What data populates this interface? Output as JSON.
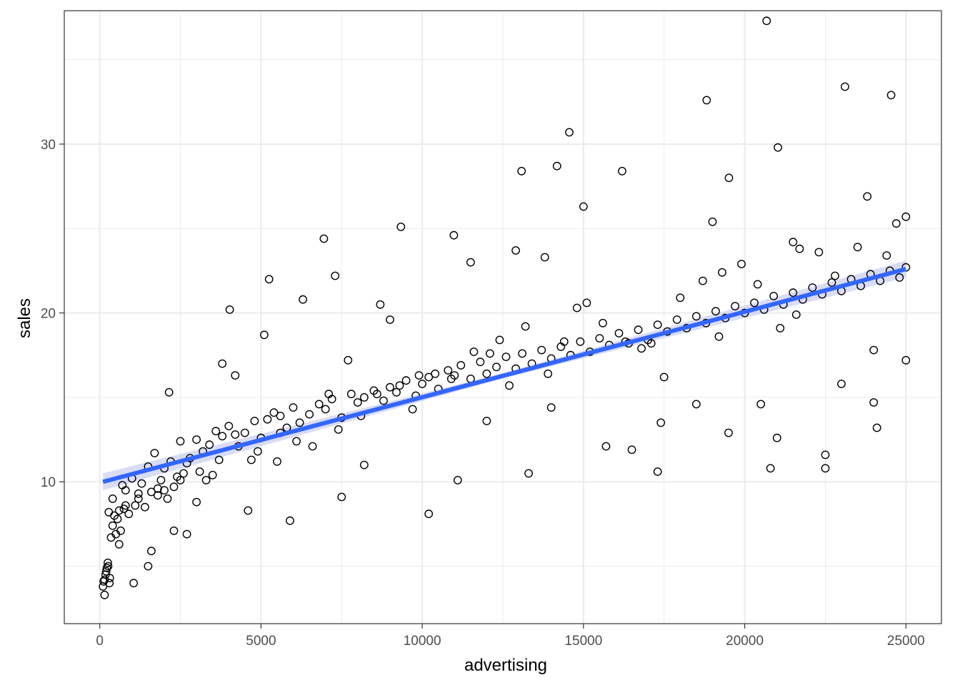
{
  "chart_data": {
    "type": "scatter",
    "title": "",
    "xlabel": "advertising",
    "ylabel": "sales",
    "xlim": [
      -1100,
      26100
    ],
    "ylim": [
      1.6,
      37.9
    ],
    "x_ticks": [
      0,
      5000,
      10000,
      15000,
      20000,
      25000
    ],
    "x_tick_labels": [
      "0",
      "5000",
      "10000",
      "15000",
      "20000",
      "25000"
    ],
    "y_ticks": [
      10,
      20,
      30
    ],
    "y_tick_labels": [
      "10",
      "20",
      "30"
    ],
    "grid": true,
    "theme": "bw",
    "legend": "none",
    "colors": {
      "points": "#000000",
      "trend": "#3366ff",
      "band": "#c8cdf0",
      "grid": "#ebebeb",
      "border": "#333333"
    },
    "trend_line": {
      "method": "linear",
      "x": [
        100,
        25000
      ],
      "y": [
        10.0,
        22.6
      ],
      "band_halfwidth": 0.35
    },
    "series": [
      {
        "x": [
          100,
          150,
          180,
          220,
          250,
          300,
          150,
          200,
          260,
          310,
          120,
          280,
          350,
          400,
          450,
          500,
          550,
          600,
          650,
          700,
          750,
          800,
          900,
          1000,
          1100,
          1200,
          1300,
          1400,
          1500,
          1600,
          1700,
          1800,
          1900,
          2000,
          2100,
          2200,
          2300,
          2400,
          2500,
          2600,
          2700,
          2800,
          3000,
          3200,
          3400,
          3600,
          3800,
          4000,
          4200,
          4500,
          4800,
          5000,
          5200,
          5400,
          5600,
          5800,
          6000,
          6200,
          6500,
          6800,
          7000,
          7200,
          7500,
          7800,
          8000,
          8200,
          8500,
          8800,
          9000,
          9200,
          9500,
          9800,
          10000,
          10200,
          10500,
          10800,
          11000,
          11200,
          11500,
          11800,
          12000,
          12300,
          12600,
          12900,
          13100,
          13400,
          13700,
          14000,
          14300,
          14600,
          14900,
          15200,
          15500,
          15800,
          16100,
          16400,
          16700,
          17000,
          17300,
          17600,
          17900,
          18200,
          18500,
          18800,
          19100,
          19400,
          19700,
          20000,
          20300,
          20600,
          20900,
          21200,
          21500,
          21800,
          22100,
          22400,
          22700,
          23000,
          23300,
          23600,
          23900,
          24200,
          24500,
          24800,
          25000,
          20680,
          23110,
          18820,
          24540,
          14560,
          21030,
          13080,
          14180,
          19510,
          25000,
          6950,
          9340,
          3800,
          2150,
          4030,
          5250,
          7300,
          10980,
          12900,
          16200,
          17300,
          20800,
          22500,
          24100,
          1050,
          1500,
          600,
          400,
          2300,
          2700,
          4600,
          5900,
          7500,
          10200,
          11100,
          13300,
          15700,
          17400,
          19500,
          21000,
          22500,
          24000,
          1600,
          3000,
          5500,
          8200,
          12000,
          14000,
          16500,
          18500,
          20500,
          23000,
          9000,
          11500,
          13800,
          15000,
          19000,
          21500,
          23800,
          4200,
          6300,
          8700,
          3500,
          5100,
          7700,
          9900,
          12400,
          14800,
          17100,
          19300,
          21700,
          24400,
          2000,
          3300,
          4700,
          6100,
          7400,
          8600,
          9700,
          10900,
          12100,
          13200,
          14400,
          15600,
          16800,
          18000,
          19200,
          20400,
          21600,
          22800,
          24000,
          25000,
          800,
          1200,
          1800,
          2500,
          3100,
          3700,
          4300,
          4900,
          5600,
          6600,
          7100,
          8100,
          9300,
          10400,
          11600,
          12700,
          13900,
          15100,
          16300,
          17500,
          18700,
          19900,
          21100,
          22300,
          23500,
          24700
        ],
        "y": [
          3.8,
          4.2,
          4.5,
          4.9,
          5.2,
          4.0,
          3.3,
          4.7,
          5.0,
          4.3,
          4.1,
          8.2,
          6.7,
          7.4,
          8.0,
          6.9,
          7.8,
          8.3,
          7.1,
          9.8,
          8.4,
          9.5,
          8.1,
          10.2,
          8.6,
          9.3,
          9.9,
          8.5,
          10.9,
          9.4,
          11.7,
          9.6,
          10.1,
          10.8,
          9.0,
          11.2,
          9.7,
          10.3,
          12.4,
          10.5,
          11.1,
          11.4,
          12.5,
          11.8,
          12.2,
          13.0,
          12.7,
          13.3,
          12.8,
          12.9,
          13.6,
          12.6,
          13.7,
          14.1,
          13.9,
          13.2,
          14.4,
          13.5,
          14.0,
          14.6,
          14.3,
          14.9,
          13.8,
          15.2,
          14.7,
          15.0,
          15.4,
          14.8,
          15.6,
          15.3,
          16.0,
          15.1,
          15.8,
          16.2,
          15.5,
          16.6,
          16.3,
          16.9,
          16.1,
          17.1,
          16.4,
          16.8,
          17.4,
          16.7,
          17.6,
          17.0,
          17.8,
          17.3,
          18.0,
          17.5,
          18.3,
          17.7,
          18.5,
          18.1,
          18.8,
          18.2,
          19.0,
          18.4,
          19.3,
          18.9,
          19.6,
          19.1,
          19.8,
          19.4,
          20.1,
          19.7,
          20.4,
          20.0,
          20.6,
          20.2,
          21.0,
          20.5,
          21.2,
          20.8,
          21.5,
          21.1,
          21.8,
          21.3,
          22.0,
          21.6,
          22.3,
          21.9,
          22.5,
          22.1,
          22.7,
          37.3,
          33.4,
          32.6,
          32.9,
          30.7,
          29.8,
          28.4,
          28.7,
          28.0,
          25.7,
          24.4,
          25.1,
          17.0,
          15.3,
          20.2,
          22.0,
          22.2,
          24.6,
          23.7,
          28.4,
          10.6,
          10.8,
          10.8,
          13.2,
          4.0,
          5.0,
          6.3,
          9.0,
          7.1,
          6.9,
          8.3,
          7.7,
          9.1,
          8.1,
          10.1,
          10.5,
          12.1,
          13.5,
          12.9,
          12.6,
          11.6,
          14.7,
          5.9,
          8.8,
          11.2,
          11.0,
          13.6,
          14.4,
          11.9,
          14.6,
          14.6,
          15.8,
          19.6,
          23.0,
          23.3,
          26.3,
          25.4,
          24.2,
          26.9,
          16.3,
          20.8,
          20.5,
          10.4,
          18.7,
          17.2,
          16.3,
          18.4,
          20.3,
          18.2,
          22.4,
          23.8,
          23.4,
          9.5,
          10.1,
          11.3,
          12.4,
          13.1,
          15.2,
          14.3,
          16.1,
          17.6,
          19.2,
          18.3,
          19.4,
          17.9,
          20.9,
          18.6,
          21.7,
          19.9,
          22.2,
          17.8,
          17.2,
          8.6,
          9.0,
          9.2,
          10.1,
          10.6,
          11.3,
          12.1,
          11.8,
          12.9,
          12.1,
          15.2,
          13.9,
          15.7,
          16.4,
          17.7,
          15.7,
          16.4,
          20.6,
          18.3,
          16.2,
          21.9,
          22.9,
          19.1,
          23.6,
          23.9,
          25.3
        ]
      }
    ]
  }
}
